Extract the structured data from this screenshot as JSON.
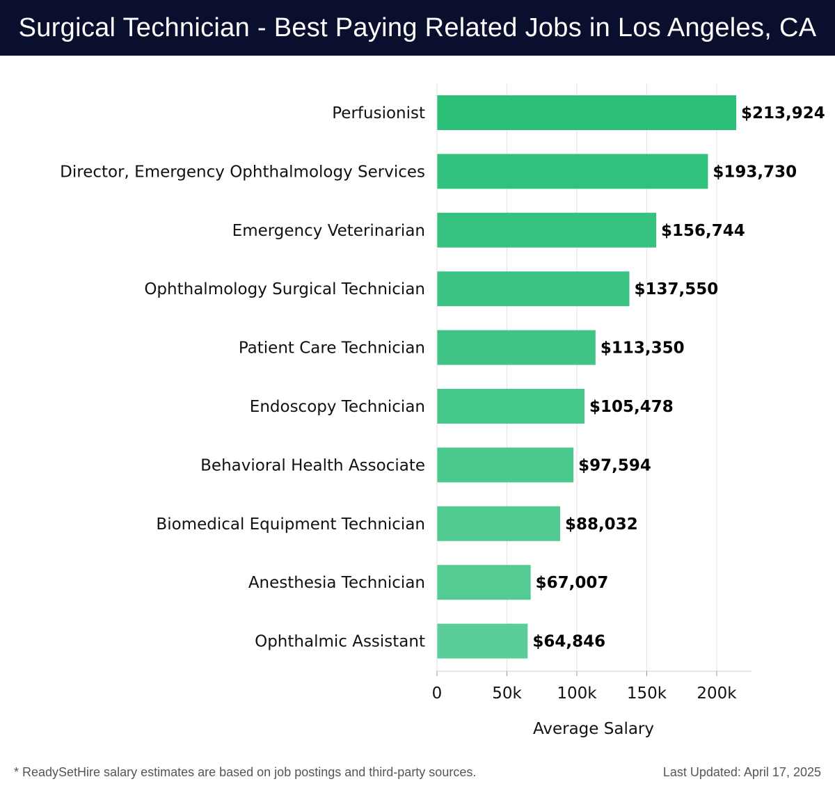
{
  "header": {
    "title": "Surgical Technician - Best Paying Related Jobs in Los Angeles, CA"
  },
  "chart_data": {
    "type": "bar",
    "orientation": "horizontal",
    "categories": [
      "Perfusionist",
      "Director, Emergency Ophthalmology Services",
      "Emergency Veterinarian",
      "Ophthalmology Surgical Technician",
      "Patient Care Technician",
      "Endoscopy Technician",
      "Behavioral Health Associate",
      "Biomedical Equipment Technician",
      "Anesthesia Technician",
      "Ophthalmic Assistant"
    ],
    "values": [
      213924,
      193730,
      156744,
      137550,
      113350,
      105478,
      97594,
      88032,
      67007,
      64846
    ],
    "value_labels": [
      "$213,924",
      "$193,730",
      "$156,744",
      "$137,550",
      "$113,350",
      "$105,478",
      "$97,594",
      "$88,032",
      "$67,007",
      "$64,846"
    ],
    "xlabel": "Average Salary",
    "xticks": [
      0,
      50000,
      100000,
      150000,
      200000
    ],
    "xtick_labels": [
      "0",
      "50k",
      "100k",
      "150k",
      "200k"
    ],
    "xlim": [
      0,
      225000
    ],
    "grid": true,
    "bar_color_start": "#2bbf78",
    "bar_color_end": "#5acd98"
  },
  "footer": {
    "note": "* ReadySetHire salary estimates are based on job postings and third-party sources.",
    "updated": "Last Updated: April 17, 2025"
  }
}
